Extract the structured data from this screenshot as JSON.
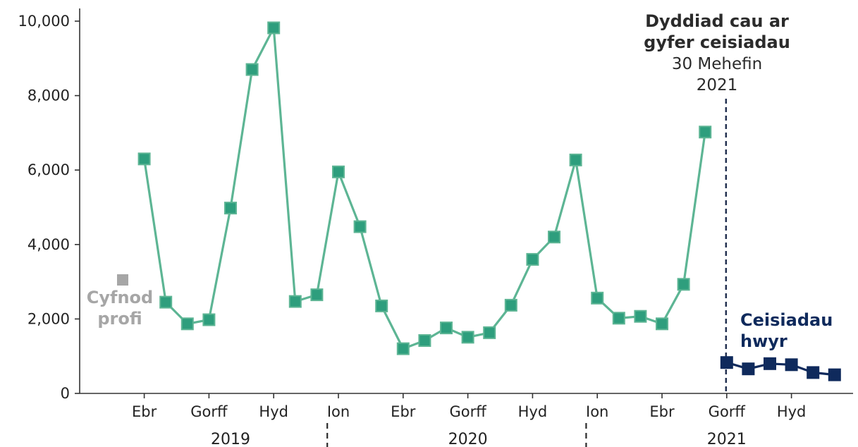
{
  "chart_data": {
    "type": "line",
    "title": "",
    "xlabel": "",
    "ylabel": "",
    "ylim": [
      0,
      10000
    ],
    "yticks": [
      0,
      2000,
      4000,
      6000,
      8000,
      10000
    ],
    "ytick_labels": [
      "0",
      "2,000",
      "4,000",
      "6,000",
      "8,000",
      "10,000"
    ],
    "xticks": [
      {
        "label": "Ebr",
        "x": "2019-04"
      },
      {
        "label": "Gorff",
        "x": "2019-07"
      },
      {
        "label": "Hyd",
        "x": "2019-10"
      },
      {
        "label": "Ion",
        "x": "2020-01"
      },
      {
        "label": "Ebr",
        "x": "2020-04"
      },
      {
        "label": "Gorff",
        "x": "2020-07"
      },
      {
        "label": "Hyd",
        "x": "2020-10"
      },
      {
        "label": "Ion",
        "x": "2021-01"
      },
      {
        "label": "Ebr",
        "x": "2021-04"
      },
      {
        "label": "Gorff",
        "x": "2021-07"
      },
      {
        "label": "Hyd",
        "x": "2021-10"
      }
    ],
    "years": [
      {
        "label": "2019",
        "center": "2019-08"
      },
      {
        "label": "2020",
        "center": "2020-07"
      },
      {
        "label": "2021",
        "center": "2021-07"
      }
    ],
    "year_dividers": [
      "2019-12-16",
      "2020-12-16"
    ],
    "series": [
      {
        "name": "Cyfnod profi",
        "color": "#a6a6a6",
        "line": false,
        "points": [
          {
            "x": "2019-03",
            "y": 3050
          }
        ]
      },
      {
        "name": "",
        "color": "#5db594",
        "marker_color": "#2e9e7d",
        "line": true,
        "points": [
          {
            "x": "2019-04",
            "y": 6300
          },
          {
            "x": "2019-05",
            "y": 2450
          },
          {
            "x": "2019-06",
            "y": 1870
          },
          {
            "x": "2019-07",
            "y": 1980
          },
          {
            "x": "2019-08",
            "y": 4980
          },
          {
            "x": "2019-09",
            "y": 8700
          },
          {
            "x": "2019-10",
            "y": 9820
          },
          {
            "x": "2019-11",
            "y": 2470
          },
          {
            "x": "2019-12",
            "y": 2650
          },
          {
            "x": "2020-01",
            "y": 5950
          },
          {
            "x": "2020-02",
            "y": 4480
          },
          {
            "x": "2020-03",
            "y": 2350
          },
          {
            "x": "2020-04",
            "y": 1200
          },
          {
            "x": "2020-05",
            "y": 1420
          },
          {
            "x": "2020-06",
            "y": 1760
          },
          {
            "x": "2020-07",
            "y": 1510
          },
          {
            "x": "2020-08",
            "y": 1630
          },
          {
            "x": "2020-09",
            "y": 2370
          },
          {
            "x": "2020-10",
            "y": 3600
          },
          {
            "x": "2020-11",
            "y": 4200
          },
          {
            "x": "2020-12",
            "y": 6270
          },
          {
            "x": "2021-01",
            "y": 2560
          },
          {
            "x": "2021-02",
            "y": 2020
          },
          {
            "x": "2021-03",
            "y": 2070
          },
          {
            "x": "2021-04",
            "y": 1870
          },
          {
            "x": "2021-05",
            "y": 2930
          },
          {
            "x": "2021-06",
            "y": 7020
          }
        ]
      },
      {
        "name": "Ceisiadau hwyr",
        "color": "#0f2a5c",
        "line": true,
        "points": [
          {
            "x": "2021-07",
            "y": 830
          },
          {
            "x": "2021-08",
            "y": 660
          },
          {
            "x": "2021-09",
            "y": 800
          },
          {
            "x": "2021-10",
            "y": 770
          },
          {
            "x": "2021-11",
            "y": 560
          },
          {
            "x": "2021-12",
            "y": 500
          }
        ]
      }
    ],
    "annotations": {
      "test_period": {
        "line1": "Cyfnod",
        "line2": "profi",
        "color": "#a6a6a6"
      },
      "late_applications": {
        "line1": "Ceisiadau",
        "line2": "hwyr",
        "color": "#0f2a5c"
      },
      "deadline": {
        "line1": "Dyddiad cau ar",
        "line2": "gyfer ceisiadau",
        "line3": "30 Mehefin",
        "line4": "2021",
        "x": "2021-06-30",
        "color": "#1f2d4d"
      }
    }
  }
}
